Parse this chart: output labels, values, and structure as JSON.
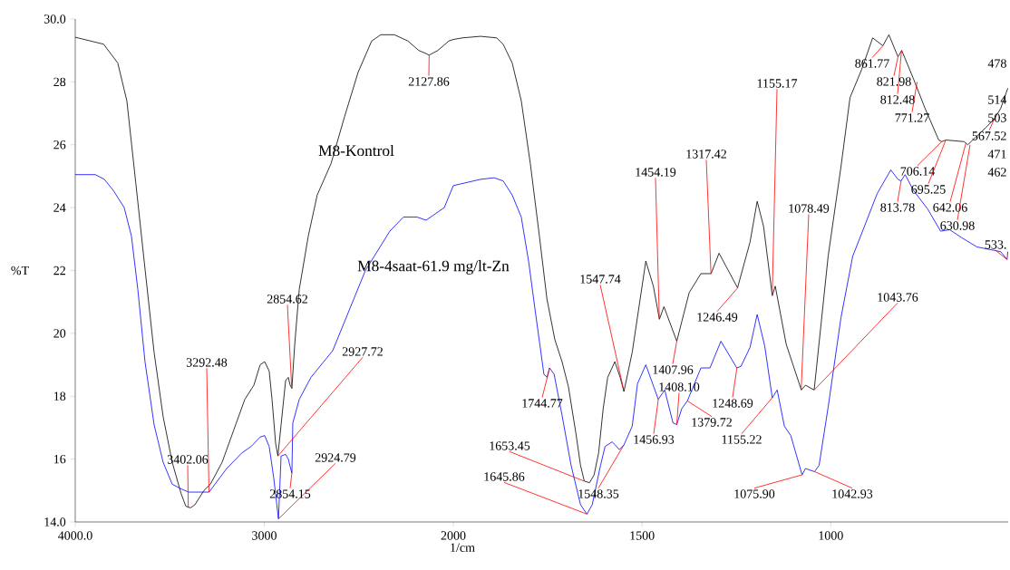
{
  "chart_data": [
    {
      "type": "line",
      "ylabel": "%T",
      "xlabel": "1/cm",
      "xlim": [
        4000,
        2000
      ],
      "ylim": [
        14,
        30
      ],
      "xticks": [
        {
          "value": 4000,
          "label": "4000.0"
        },
        3000,
        2000
      ],
      "yticks": [
        {
          "value": 14,
          "label": "14.0"
        },
        16,
        18,
        20,
        22,
        24,
        26,
        28,
        {
          "value": 30,
          "label": "30.0"
        }
      ],
      "grid": false,
      "legend": false,
      "marker": "none",
      "line_style": "solid",
      "series": [
        {
          "name": "M8-Kontrol",
          "color": "#000000",
          "x": [
            4000,
            3850,
            3775,
            3727,
            3680,
            3630,
            3583,
            3535,
            3487,
            3440,
            3415,
            3390,
            3367,
            3319,
            3285,
            3223,
            3151,
            3103,
            3055,
            3022,
            2998,
            2974,
            2959,
            2940,
            2928,
            2911,
            2887,
            2873,
            2863,
            2854,
            2839,
            2815,
            2767,
            2720,
            2647,
            2575,
            2504,
            2432,
            2384,
            2312,
            2240,
            2183,
            2144,
            2128,
            2082,
            2024,
            2000
          ],
          "values": [
            29.42,
            29.2,
            28.6,
            27.4,
            24.8,
            22.0,
            19.4,
            17.35,
            15.9,
            14.9,
            14.5,
            14.45,
            14.55,
            15.0,
            15.2,
            15.9,
            17.1,
            17.9,
            18.35,
            19.0,
            19.1,
            18.8,
            17.9,
            16.5,
            16.1,
            17.1,
            18.5,
            18.6,
            18.35,
            18.25,
            19.65,
            21.4,
            23.1,
            24.4,
            25.4,
            26.9,
            28.3,
            29.3,
            29.5,
            29.5,
            29.3,
            29.0,
            28.9,
            28.85,
            29.0,
            29.3,
            29.35
          ]
        },
        {
          "name": "M8-4saat-61.9 mg/lt-Zn",
          "color": "#0000ff",
          "x": [
            4000,
            3894,
            3846,
            3799,
            3741,
            3703,
            3669,
            3631,
            3583,
            3535,
            3487,
            3439,
            3400,
            3340,
            3292,
            3199,
            3118,
            3070,
            3022,
            2998,
            2974,
            2950,
            2925,
            2911,
            2887,
            2873,
            2854,
            2849,
            2815,
            2753,
            2638,
            2465,
            2336,
            2264,
            2192,
            2144,
            2096,
            2048,
            2000
          ],
          "values": [
            25.05,
            25.05,
            24.9,
            24.55,
            24.0,
            23.1,
            21.4,
            19.1,
            17.1,
            15.9,
            15.2,
            15.05,
            14.95,
            14.95,
            14.95,
            15.7,
            16.2,
            16.4,
            16.7,
            16.75,
            16.4,
            15.4,
            14.1,
            16.1,
            16.15,
            16.0,
            15.55,
            17.15,
            17.9,
            18.6,
            19.45,
            22.0,
            23.25,
            23.7,
            23.7,
            23.6,
            23.8,
            24.0,
            24.7
          ]
        }
      ],
      "annotations": [
        {
          "text": "2127.86",
          "x": 2127.86,
          "y": 28.85
        },
        {
          "text": "3402.06",
          "x": 3402.06,
          "y": 14.45
        },
        {
          "text": "3292.48",
          "x": 3292.48,
          "y": 14.95
        },
        {
          "text": "2854.62",
          "x": 2854.62,
          "y": 18.25
        },
        {
          "text": "2927.72",
          "x": 2927.72,
          "y": 16.1
        },
        {
          "text": "2924.79",
          "x": 2924.79,
          "y": 14.1
        },
        {
          "text": "2854.15",
          "x": 2854.15,
          "y": 15.55
        }
      ]
    },
    {
      "type": "line",
      "xlim": [
        2000,
        530
      ],
      "ylim": [
        14,
        30
      ],
      "tick_labels": "x",
      "xticks": [
        1500,
        1000
      ],
      "grid": false,
      "legend": false,
      "marker": "none",
      "line_style": "solid",
      "series": [
        {
          "color": "#000000",
          "x": [
            2000,
            1976,
            1928,
            1885,
            1868,
            1844,
            1820,
            1796,
            1772,
            1752,
            1731,
            1712,
            1695,
            1675,
            1663,
            1653,
            1639,
            1627,
            1615,
            1603,
            1591,
            1572,
            1558,
            1548,
            1526,
            1490,
            1470,
            1454,
            1442,
            1408,
            1375,
            1344,
            1317,
            1296,
            1247,
            1214,
            1195,
            1178,
            1155,
            1147,
            1118,
            1078,
            1067,
            1044,
            1007,
            973,
            949,
            918,
            889,
            862,
            846,
            822,
            812,
            781,
            750,
            714,
            706,
            695,
            647,
            637,
            589,
            568,
            550,
            531
          ],
          "values": [
            29.35,
            29.4,
            29.45,
            29.4,
            29.2,
            28.6,
            27.4,
            25.4,
            23.1,
            21.1,
            19.8,
            19.1,
            18.3,
            16.8,
            15.8,
            15.3,
            15.25,
            15.5,
            16.2,
            17.6,
            18.6,
            19.1,
            18.6,
            18.15,
            19.4,
            22.3,
            21.5,
            20.45,
            20.85,
            19.75,
            21.3,
            21.9,
            21.9,
            22.55,
            21.45,
            22.9,
            24.2,
            23.4,
            21.2,
            21.5,
            19.65,
            18.2,
            18.35,
            18.2,
            22.45,
            25.3,
            27.5,
            28.4,
            29.4,
            29.15,
            29.5,
            28.8,
            29.0,
            28.1,
            27.15,
            26.15,
            26.1,
            26.15,
            26.1,
            26.0,
            26.55,
            26.8,
            27.15,
            27.8
          ]
        },
        {
          "color": "#0000ff",
          "x": [
            2000,
            1964,
            1928,
            1892,
            1868,
            1844,
            1820,
            1800,
            1784,
            1760,
            1752,
            1745,
            1733,
            1712,
            1688,
            1663,
            1646,
            1632,
            1610,
            1598,
            1579,
            1560,
            1548,
            1526,
            1512,
            1490,
            1457,
            1440,
            1418,
            1408,
            1395,
            1380,
            1344,
            1320,
            1291,
            1249,
            1238,
            1214,
            1195,
            1175,
            1155,
            1142,
            1123,
            1106,
            1076,
            1067,
            1043,
            1031,
            1007,
            973,
            942,
            911,
            877,
            841,
            822,
            814,
            803,
            781,
            743,
            709,
            685,
            654,
            613,
            550,
            533,
            531
          ],
          "values": [
            24.7,
            24.8,
            24.9,
            24.95,
            24.85,
            24.4,
            23.7,
            22.25,
            20.8,
            18.7,
            18.6,
            18.9,
            18.7,
            17.4,
            15.8,
            14.55,
            14.25,
            14.55,
            15.8,
            16.4,
            16.55,
            16.3,
            16.45,
            17.05,
            18.4,
            19.0,
            17.9,
            18.2,
            17.15,
            17.1,
            17.6,
            17.85,
            18.9,
            18.9,
            19.75,
            18.9,
            18.95,
            19.55,
            20.6,
            19.6,
            17.95,
            18.2,
            17.05,
            16.75,
            15.5,
            15.7,
            15.6,
            15.8,
            17.65,
            20.5,
            22.45,
            23.4,
            24.45,
            25.2,
            24.9,
            24.85,
            25.05,
            24.55,
            23.95,
            23.25,
            23.3,
            23.05,
            22.75,
            22.6,
            22.35,
            22.6
          ]
        }
      ],
      "annotations": [
        {
          "text": "1744.77",
          "x": 1744.77,
          "y": 18.9
        },
        {
          "text": "1653.45",
          "x": 1653.45,
          "y": 15.3
        },
        {
          "text": "1645.86",
          "x": 1645.86,
          "y": 14.25
        },
        {
          "text": "1547.74",
          "x": 1547.74,
          "y": 18.15
        },
        {
          "text": "1548.35",
          "x": 1548.35,
          "y": 16.45
        },
        {
          "text": "1454.19",
          "x": 1454.19,
          "y": 20.45
        },
        {
          "text": "1407.96",
          "x": 1407.96,
          "y": 19.75
        },
        {
          "text": "1408.10",
          "x": 1408.1,
          "y": 17.1
        },
        {
          "text": "1456.93",
          "x": 1456.93,
          "y": 17.9
        },
        {
          "text": "1379.72",
          "x": 1379.72,
          "y": 17.85
        },
        {
          "text": "1317.42",
          "x": 1317.42,
          "y": 21.9
        },
        {
          "text": "1246.49",
          "x": 1246.49,
          "y": 21.45
        },
        {
          "text": "1248.69",
          "x": 1248.69,
          "y": 18.9
        },
        {
          "text": "1155.17",
          "x": 1155.17,
          "y": 21.2
        },
        {
          "text": "1155.22",
          "x": 1155.22,
          "y": 17.95
        },
        {
          "text": "1078.49",
          "x": 1078.49,
          "y": 18.2
        },
        {
          "text": "1043.76",
          "x": 1043.76,
          "y": 18.2
        },
        {
          "text": "1075.90",
          "x": 1075.9,
          "y": 15.5
        },
        {
          "text": "1042.93",
          "x": 1042.93,
          "y": 15.6
        },
        {
          "text": "861.77",
          "x": 861.77,
          "y": 29.15
        },
        {
          "text": "821.98",
          "x": 821.98,
          "y": 28.8
        },
        {
          "text": "812.48",
          "x": 812.48,
          "y": 29.0
        },
        {
          "text": "771.27",
          "x": 771.27,
          "y": 28.0
        },
        {
          "text": "706.14",
          "x": 706.14,
          "y": 26.1
        },
        {
          "text": "695.25",
          "x": 695.25,
          "y": 26.15
        },
        {
          "text": "642.06",
          "x": 642.06,
          "y": 26.05
        },
        {
          "text": "630.98",
          "x": 630.98,
          "y": 26.0
        },
        {
          "text": "813.78",
          "x": 813.78,
          "y": 24.85
        },
        {
          "text": "567.52",
          "x": 567.52,
          "y": 26.8
        },
        {
          "text": "533.",
          "x": 533,
          "y": 22.35
        },
        "478",
        "514",
        "503",
        "471",
        "462"
      ]
    }
  ]
}
